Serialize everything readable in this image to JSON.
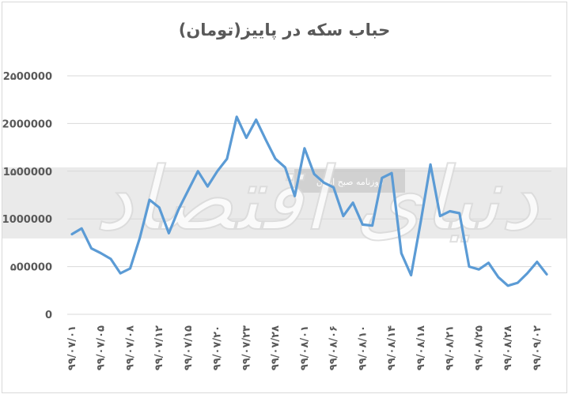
{
  "chart_data": {
    "type": "line",
    "title": "حباب سکه در پاییز(تومان)",
    "xlabel": "",
    "ylabel": "",
    "ylim": [
      0,
      2500000
    ],
    "y_ticks": [
      {
        "value": 0,
        "label": "0"
      },
      {
        "value": 500000,
        "label": "۵00000"
      },
      {
        "value": 1000000,
        "label": "1000000"
      },
      {
        "value": 1500000,
        "label": "1۵00000"
      },
      {
        "value": 2000000,
        "label": "2000000"
      },
      {
        "value": 2500000,
        "label": "2۵00000"
      }
    ],
    "x_tick_labels": [
      "۹۹/۰۷/۰۱",
      "۹۹/۰۷/۰۵",
      "۹۹/۰۷/۰۸",
      "۹۹/۰۷/۱۲",
      "۹۹/۰۷/۱۵",
      "۹۹/۰۷/۲۰",
      "۹۹/۰۷/۲۳",
      "۹۹/۰۷/۲۸",
      "۹۹/۰۸/۰۱",
      "۹۹/۰۸/۰۶",
      "۹۹/۰۸/۱۰",
      "۹۹/۰۸/۱۴",
      "۹۹/۰۸/۱۸",
      "۹۹/۰۸/۲۱",
      "۹۹/۰۸/۲۵",
      "۹۹/۰۸/۲۸",
      "۹۹/۰۹/۰۲"
    ],
    "grid": true,
    "line_color": "#5b9bd5",
    "series": [
      {
        "values": [
          840000,
          900000,
          690000,
          640000,
          580000,
          430000,
          480000,
          800000,
          1200000,
          1120000,
          850000,
          1100000,
          1300000,
          1500000,
          1340000,
          1500000,
          1630000,
          2070000,
          1850000,
          2040000,
          1830000,
          1630000,
          1540000,
          1240000,
          1740000,
          1470000,
          1380000,
          1330000,
          1030000,
          1170000,
          940000,
          930000,
          1430000,
          1480000,
          640000,
          410000,
          970000,
          1570000,
          1030000,
          1080000,
          1060000,
          500000,
          470000,
          540000,
          390000,
          300000,
          330000,
          430000,
          550000,
          420000
        ]
      }
    ]
  },
  "watermark": {
    "text": "دنیای اقتصاد",
    "stamp": "روزنامه صبح ایران"
  }
}
